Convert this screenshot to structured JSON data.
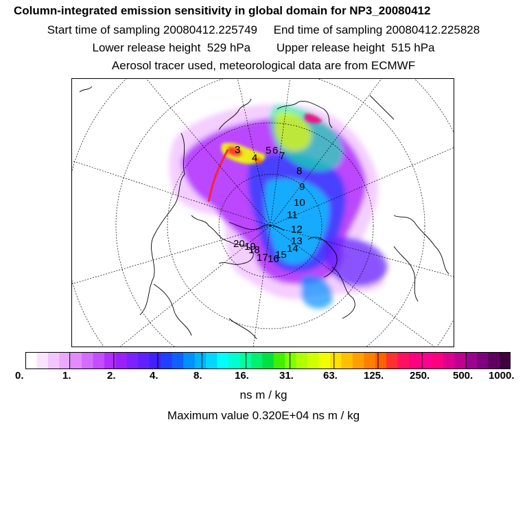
{
  "header": {
    "title": "Column-integrated emission sensitivity in global domain for NP3_20080412",
    "start_label": "Start time of sampling 20080412.225749",
    "end_label": "End time of sampling 20080412.225828",
    "lower_label": "Lower release height  529 hPa",
    "upper_label": "Upper release height  515 hPa",
    "aerosol_line": "Aerosol tracer used, meteorological data are from ECMWF"
  },
  "map": {
    "projection": "polar stereographic, north pole",
    "trajectory_labels": [
      "3",
      "4",
      "5",
      "6",
      "7",
      "8",
      "9",
      "10",
      "11",
      "12",
      "13",
      "14",
      "15",
      "16",
      "17",
      "18",
      "19",
      "20"
    ]
  },
  "legend": {
    "tick_labels": [
      "0.",
      "1.",
      "2.",
      "4.",
      "8.",
      "16.",
      "31.",
      "63.",
      "125.",
      "250.",
      "500.",
      "1000."
    ],
    "units": "ns m / kg",
    "colors": [
      "#ffffff",
      "#f9e4ff",
      "#f2c6ff",
      "#eba8ff",
      "#e48aff",
      "#d36cff",
      "#c24eff",
      "#b130ff",
      "#9a20ff",
      "#7d20ff",
      "#6020ff",
      "#4020ff",
      "#2040ff",
      "#1060ff",
      "#0090ff",
      "#00b4ff",
      "#00d8ff",
      "#00ffff",
      "#00ffd0",
      "#00ffa0",
      "#00f070",
      "#00e040",
      "#40f000",
      "#80ff00",
      "#b0ff00",
      "#d0ff00",
      "#f0ff00",
      "#ffe000",
      "#ffc000",
      "#ffa000",
      "#ff8000",
      "#ff6000",
      "#ff3030",
      "#ff1060",
      "#ff0080",
      "#ff0090",
      "#ff0080",
      "#e00090",
      "#c00090",
      "#a00090",
      "#800080",
      "#600060",
      "#400040"
    ]
  },
  "footer": {
    "max_value": "Maximum value  0.320E+04 ns m / kg"
  }
}
